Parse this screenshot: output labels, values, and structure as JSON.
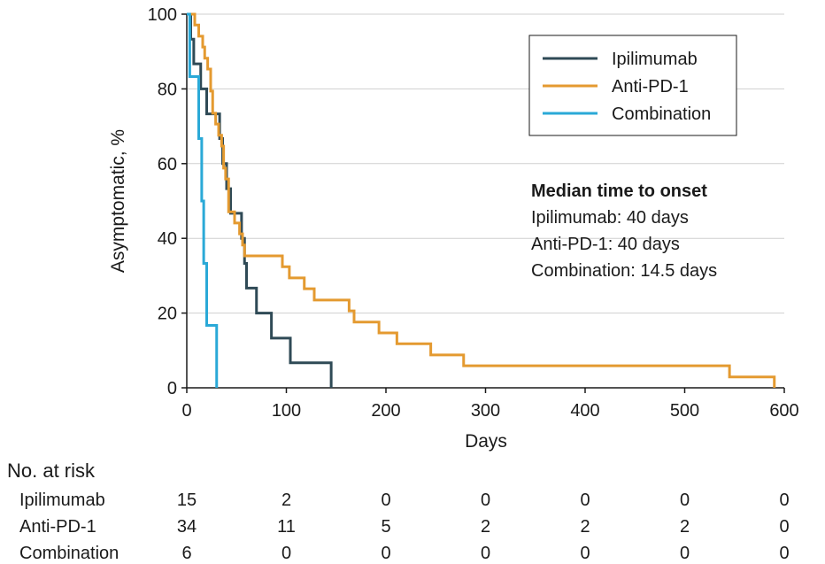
{
  "chart_data": {
    "type": "line",
    "subtype": "kaplan-meier step",
    "xlabel": "Days",
    "ylabel": "Asymptomatic, %",
    "xlim": [
      0,
      600
    ],
    "ylim": [
      0,
      100
    ],
    "x_ticks": [
      0,
      100,
      200,
      300,
      400,
      500,
      600
    ],
    "y_ticks": [
      0,
      20,
      40,
      60,
      80,
      100
    ],
    "grid": "horizontal",
    "legend_position": "top-right",
    "series": [
      {
        "name": "Ipilimumab",
        "color": "#2f4a56",
        "x": [
          0,
          4,
          7,
          14,
          20,
          33,
          36,
          40,
          44,
          55,
          58,
          60,
          70,
          85,
          104,
          145
        ],
        "y": [
          100,
          93.3,
          86.7,
          80,
          73.3,
          66.7,
          60,
          53.3,
          46.7,
          40,
          33.3,
          26.7,
          20,
          13.3,
          6.7,
          0
        ]
      },
      {
        "name": "Anti-PD-1",
        "color": "#e49a30",
        "x": [
          0,
          8,
          12,
          16,
          18,
          21,
          24,
          26,
          29,
          32,
          35,
          37,
          39,
          42,
          48,
          53,
          56,
          58,
          60,
          96,
          103,
          118,
          128,
          141,
          163,
          168,
          193,
          211,
          245,
          278,
          545,
          590
        ],
        "y": [
          100,
          97.1,
          94.1,
          91.2,
          88.2,
          85.3,
          79.4,
          73.5,
          70.6,
          67.6,
          64.7,
          58.8,
          55.9,
          47.1,
          44.1,
          41.2,
          38.2,
          35.3,
          35.3,
          32.4,
          29.4,
          26.5,
          23.5,
          23.5,
          20.6,
          17.6,
          14.7,
          11.8,
          8.8,
          5.9,
          2.9,
          0
        ]
      },
      {
        "name": "Combination",
        "color": "#2aa9d7",
        "x": [
          0,
          3,
          5,
          12,
          15,
          17,
          20,
          30
        ],
        "y": [
          100,
          83.3,
          83.3,
          66.7,
          50,
          33.3,
          16.7,
          0
        ]
      }
    ],
    "annotation": {
      "title": "Median time to onset",
      "lines": [
        "Ipilimumab: 40 days",
        "Anti-PD-1: 40 days",
        "Combination: 14.5 days"
      ]
    },
    "risk_table": {
      "title": "No. at risk",
      "rows": [
        {
          "name": "Ipilimumab",
          "values": [
            "15",
            "2",
            "0",
            "0",
            "0",
            "0",
            "0"
          ]
        },
        {
          "name": "Anti-PD-1",
          "values": [
            "34",
            "11",
            "5",
            "2",
            "2",
            "2",
            "0"
          ]
        },
        {
          "name": "Combination",
          "values": [
            "6",
            "0",
            "0",
            "0",
            "0",
            "0",
            "0"
          ]
        }
      ]
    }
  }
}
